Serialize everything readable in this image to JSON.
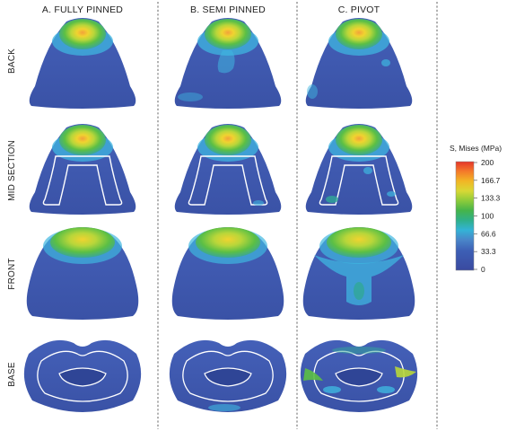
{
  "columns": [
    {
      "label": "A. FULLY PINNED"
    },
    {
      "label": "B. SEMI PINNED"
    },
    {
      "label": "C. PIVOT"
    }
  ],
  "rows": [
    {
      "label": "BACK"
    },
    {
      "label": "MID SECTION"
    },
    {
      "label": "FRONT"
    },
    {
      "label": "BASE"
    }
  ],
  "legend": {
    "title": "S, Mises  (MPa)",
    "ticks": [
      "200",
      "166.7",
      "133.3",
      "100",
      "66.6",
      "33.3",
      "0"
    ],
    "colors": [
      "#e5352a",
      "#f47a2a",
      "#f2b625",
      "#d8d835",
      "#8ccb3a",
      "#45b44a",
      "#2fb08a",
      "#33b3d6",
      "#4a86c9",
      "#3d5fb5",
      "#3f4fa6",
      "#3a4aa0"
    ]
  },
  "colors": {
    "body": "#3d57b0",
    "body_dark": "#2f4596",
    "cyan": "#3fb6e0",
    "teal": "#31a897",
    "green": "#5bbf45",
    "yellow_green": "#b8d63a",
    "yellow": "#f0d330",
    "orange": "#f2a23a",
    "outline": "#ffffff"
  }
}
